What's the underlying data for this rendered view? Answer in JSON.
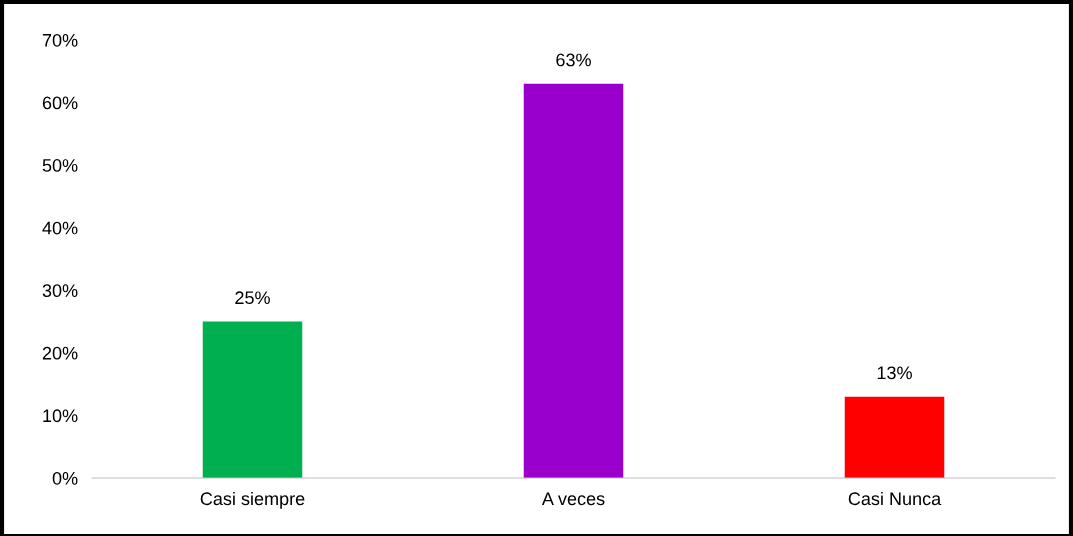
{
  "chart_data": {
    "type": "bar",
    "categories": [
      "Casi siempre",
      "A veces",
      "Casi Nunca"
    ],
    "values": [
      25,
      63,
      13
    ],
    "colors": [
      "#00b050",
      "#9900cc",
      "#ff0000"
    ],
    "value_labels": [
      "25%",
      "63%",
      "13%"
    ],
    "ylim": [
      0,
      70
    ],
    "yticks": [
      {
        "value": 0,
        "label": "0%"
      },
      {
        "value": 10,
        "label": "10%"
      },
      {
        "value": 20,
        "label": "20%"
      },
      {
        "value": 30,
        "label": "30%"
      },
      {
        "value": 40,
        "label": "40%"
      },
      {
        "value": 50,
        "label": "50%"
      },
      {
        "value": 60,
        "label": "60%"
      },
      {
        "value": 70,
        "label": "70%"
      }
    ],
    "grid": false,
    "legend": false
  }
}
